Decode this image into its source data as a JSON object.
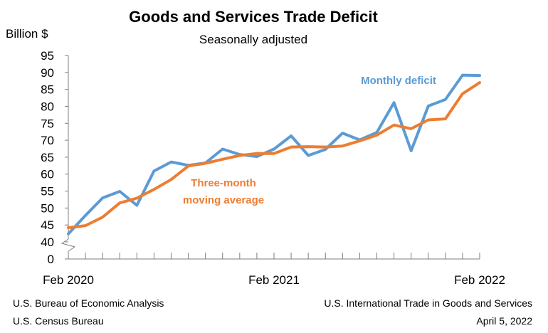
{
  "chart_data": {
    "type": "line",
    "title": "Goods and Services Trade Deficit",
    "subtitle": "Seasonally adjusted",
    "ylabel": "Billion $",
    "ylim": [
      40,
      95
    ],
    "axis_break": true,
    "yticks": [
      0,
      40,
      45,
      50,
      55,
      60,
      65,
      70,
      75,
      80,
      85,
      90,
      95
    ],
    "x": [
      "2020-02",
      "2020-03",
      "2020-04",
      "2020-05",
      "2020-06",
      "2020-07",
      "2020-08",
      "2020-09",
      "2020-10",
      "2020-11",
      "2020-12",
      "2021-01",
      "2021-02",
      "2021-03",
      "2021-04",
      "2021-05",
      "2021-06",
      "2021-07",
      "2021-08",
      "2021-09",
      "2021-10",
      "2021-11",
      "2021-12",
      "2022-01",
      "2022-02"
    ],
    "xtick_labels": [
      {
        "index": 0,
        "label": "Feb 2020"
      },
      {
        "index": 12,
        "label": "Feb 2021"
      },
      {
        "index": 24,
        "label": "Feb 2022"
      }
    ],
    "series": [
      {
        "name": "Monthly deficit",
        "color": "#5b9bd5",
        "values": [
          42.4,
          47.8,
          53.0,
          54.9,
          50.8,
          60.9,
          63.6,
          62.6,
          63.3,
          67.4,
          65.8,
          65.2,
          67.4,
          71.3,
          65.5,
          67.3,
          72.1,
          70.1,
          72.3,
          81.1,
          66.9,
          80.1,
          82.0,
          89.2,
          89.1
        ]
      },
      {
        "name": "Three-month moving average",
        "label_lines": [
          "Three-month",
          "moving average"
        ],
        "color": "#ed7d31",
        "values": [
          44.2,
          44.8,
          47.3,
          51.5,
          52.9,
          55.5,
          58.4,
          62.4,
          63.2,
          64.4,
          65.5,
          66.1,
          66.1,
          68.0,
          68.1,
          68.0,
          68.3,
          69.8,
          71.5,
          74.5,
          73.4,
          76.0,
          76.3,
          83.7,
          87.0
        ]
      }
    ]
  },
  "footer": {
    "left_line1": "U.S. Bureau of Economic Analysis",
    "left_line2": "U.S. Census Bureau",
    "right_line1": "U.S. International Trade in Goods and Services",
    "right_line2": "April 5, 2022"
  }
}
